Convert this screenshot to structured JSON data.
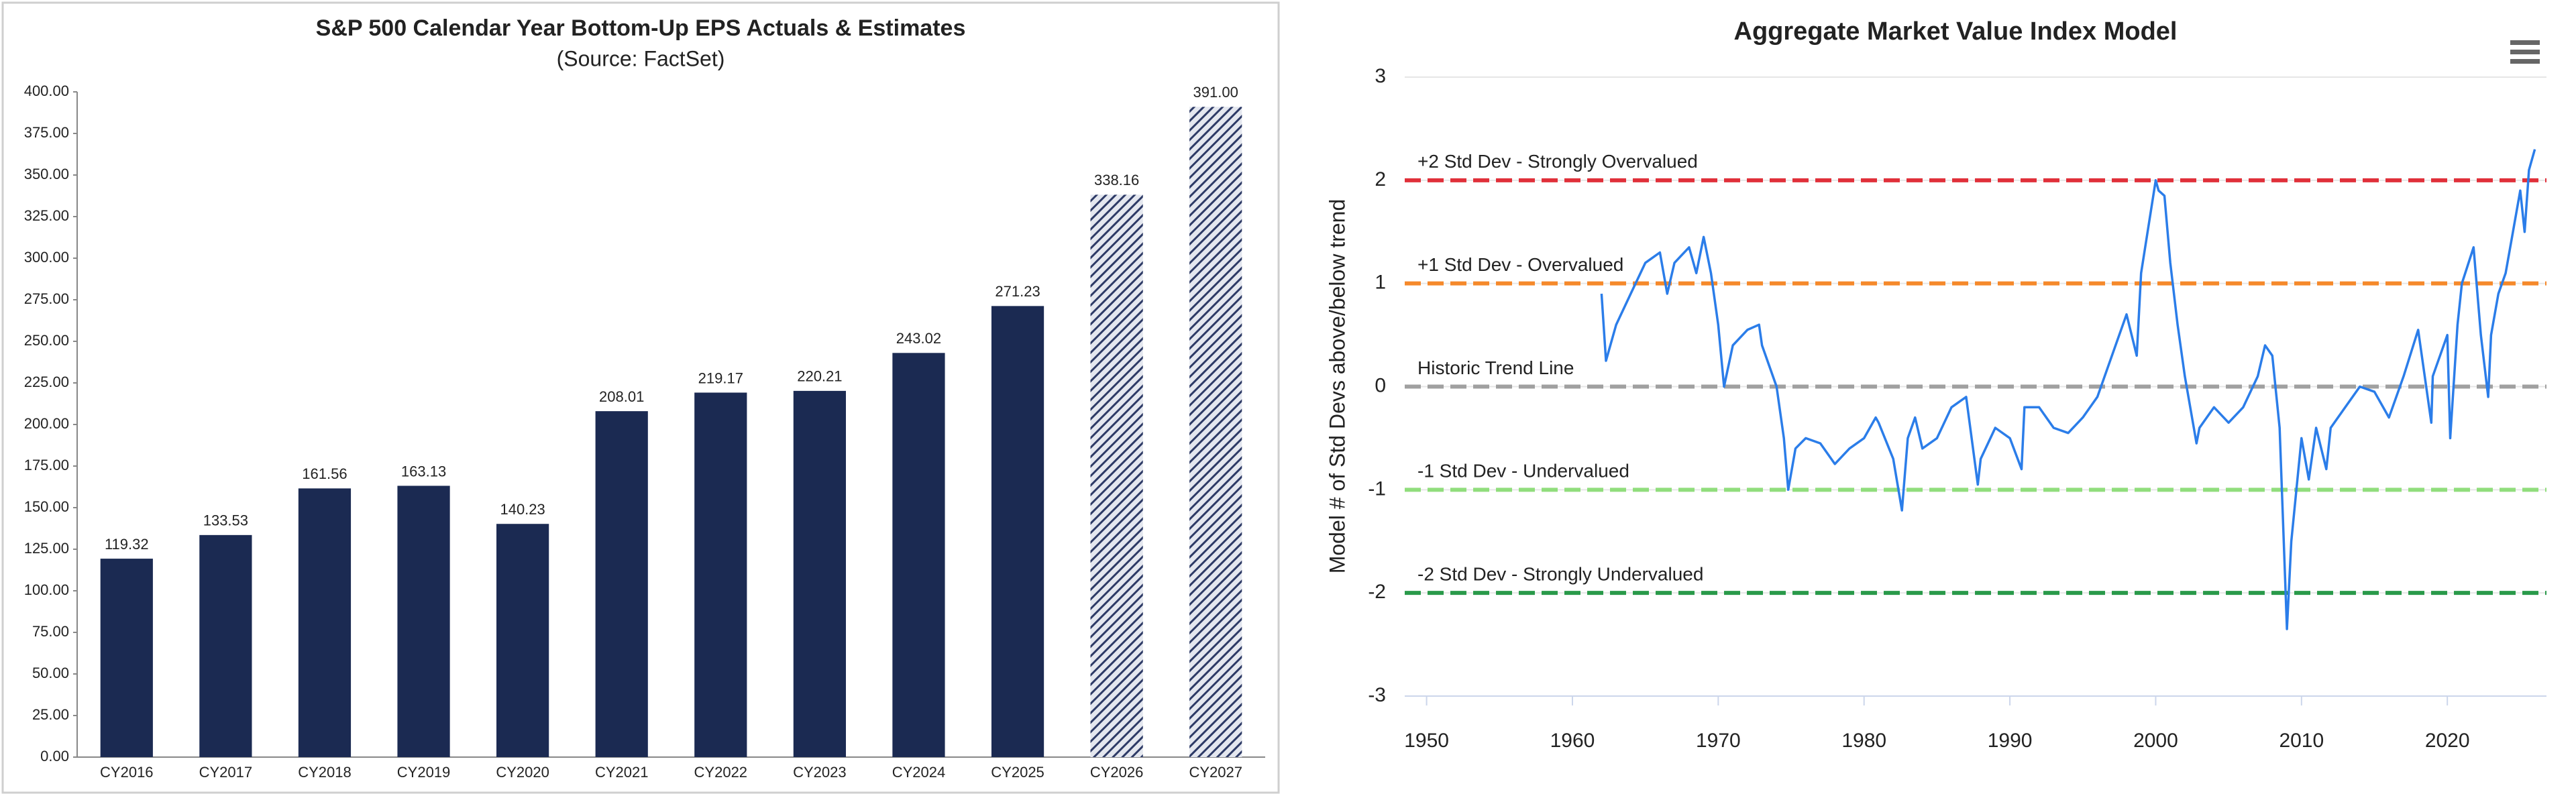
{
  "chart_data": [
    {
      "type": "bar",
      "title": "S&P 500 Calendar Year Bottom-Up EPS Actuals & Estimates",
      "subtitle": "(Source: FactSet)",
      "categories": [
        "CY2016",
        "CY2017",
        "CY2018",
        "CY2019",
        "CY2020",
        "CY2021",
        "CY2022",
        "CY2023",
        "CY2024",
        "CY2025",
        "CY2026",
        "CY2027"
      ],
      "values": [
        119.32,
        133.53,
        161.56,
        163.13,
        140.23,
        208.01,
        219.17,
        220.21,
        243.02,
        271.23,
        338.16,
        391.0
      ],
      "value_labels": [
        "119.32",
        "133.53",
        "161.56",
        "163.13",
        "140.23",
        "208.01",
        "219.17",
        "220.21",
        "243.02",
        "271.23",
        "338.16",
        "391.00"
      ],
      "bar_styles": [
        "solid",
        "solid",
        "solid",
        "solid",
        "solid",
        "solid",
        "solid",
        "solid",
        "solid",
        "solid",
        "hatched",
        "hatched"
      ],
      "color": "#1b2a52",
      "ylim": [
        0,
        400
      ],
      "yticks": [
        {
          "value": 0,
          "label": "0.00"
        },
        {
          "value": 25,
          "label": "25.00"
        },
        {
          "value": 50,
          "label": "50.00"
        },
        {
          "value": 75,
          "label": "75.00"
        },
        {
          "value": 100,
          "label": "100.00"
        },
        {
          "value": 125,
          "label": "125.00"
        },
        {
          "value": 150,
          "label": "150.00"
        },
        {
          "value": 175,
          "label": "175.00"
        },
        {
          "value": 200,
          "label": "200.00"
        },
        {
          "value": 225,
          "label": "225.00"
        },
        {
          "value": 250,
          "label": "250.00"
        },
        {
          "value": 275,
          "label": "275.00"
        },
        {
          "value": 300,
          "label": "300.00"
        },
        {
          "value": 325,
          "label": "325.00"
        },
        {
          "value": 350,
          "label": "350.00"
        },
        {
          "value": 375,
          "label": "375.00"
        },
        {
          "value": 400,
          "label": "400.00"
        }
      ]
    },
    {
      "type": "line",
      "title": "Aggregate Market Value Index Model",
      "y_label": "Model # of Std Devs above/below trend",
      "xlim": [
        1948.5,
        2026.8
      ],
      "xticks": [
        1950,
        1960,
        1970,
        1980,
        1990,
        2000,
        2010,
        2020
      ],
      "ylim": [
        -3,
        3
      ],
      "yticks": [
        -3,
        -2,
        -1,
        0,
        1,
        2,
        3
      ],
      "grid": true,
      "reference_lines": [
        {
          "value": 2,
          "label": "+2 Std Dev - Strongly Overvalued",
          "color": "#e0303a"
        },
        {
          "value": 1,
          "label": "+1 Std Dev - Overvalued",
          "color": "#f5892b"
        },
        {
          "value": 0,
          "label": "Historic Trend Line",
          "color": "#a0a0a0"
        },
        {
          "value": -1,
          "label": "-1 Std Dev - Undervalued",
          "color": "#90dd7c"
        },
        {
          "value": -2,
          "label": "-2 Std Dev - Strongly Undervalued",
          "color": "#2a9a4a"
        }
      ],
      "series": [
        {
          "color": "#2b7de9",
          "x": [
            1962,
            1962.3,
            1963,
            1964,
            1965,
            1966,
            1966.5,
            1967,
            1968,
            1968.5,
            1969,
            1969.5,
            1970,
            1970.4,
            1971,
            1972,
            1972.8,
            1973,
            1974,
            1974.5,
            1974.8,
            1975.3,
            1976,
            1977,
            1978,
            1979,
            1980,
            1980.8,
            1981,
            1982,
            1982.6,
            1983,
            1983.5,
            1984,
            1985,
            1986,
            1987,
            1987.8,
            1988,
            1989,
            1990,
            1990.8,
            1991,
            1992,
            1993,
            1994,
            1995,
            1996,
            1997,
            1998,
            1998.7,
            1999,
            2000,
            2000.2,
            2000.6,
            2001,
            2001.5,
            2002,
            2002.8,
            2003,
            2004,
            2005,
            2006,
            2007,
            2007.5,
            2008,
            2008.5,
            2009,
            2009.3,
            2010,
            2010.5,
            2011,
            2011.7,
            2012,
            2013,
            2014,
            2015,
            2016,
            2017,
            2018,
            2018.9,
            2019,
            2019.5,
            2020,
            2020.2,
            2020.7,
            2021,
            2021.8,
            2022.3,
            2022.8,
            2023,
            2023.5,
            2024,
            2024.5,
            2025,
            2025.3,
            2025.6,
            2026
          ],
          "values": [
            0.9,
            0.25,
            0.6,
            0.9,
            1.2,
            1.3,
            0.9,
            1.2,
            1.35,
            1.1,
            1.45,
            1.1,
            0.6,
            0.0,
            0.4,
            0.55,
            0.6,
            0.4,
            0.0,
            -0.5,
            -1.0,
            -0.6,
            -0.5,
            -0.55,
            -0.75,
            -0.6,
            -0.5,
            -0.3,
            -0.35,
            -0.7,
            -1.2,
            -0.5,
            -0.3,
            -0.6,
            -0.5,
            -0.2,
            -0.1,
            -0.95,
            -0.7,
            -0.4,
            -0.5,
            -0.8,
            -0.2,
            -0.2,
            -0.4,
            -0.45,
            -0.3,
            -0.1,
            0.3,
            0.7,
            0.3,
            1.1,
            2.0,
            1.9,
            1.85,
            1.2,
            0.6,
            0.1,
            -0.55,
            -0.4,
            -0.2,
            -0.35,
            -0.2,
            0.1,
            0.4,
            0.3,
            -0.4,
            -2.35,
            -1.5,
            -0.5,
            -0.9,
            -0.4,
            -0.8,
            -0.4,
            -0.2,
            0.0,
            -0.05,
            -0.3,
            0.1,
            0.55,
            -0.35,
            0.1,
            0.3,
            0.5,
            -0.5,
            0.6,
            1.0,
            1.35,
            0.5,
            -0.1,
            0.5,
            0.9,
            1.1,
            1.5,
            1.9,
            1.5,
            2.1,
            2.3
          ]
        }
      ]
    }
  ]
}
